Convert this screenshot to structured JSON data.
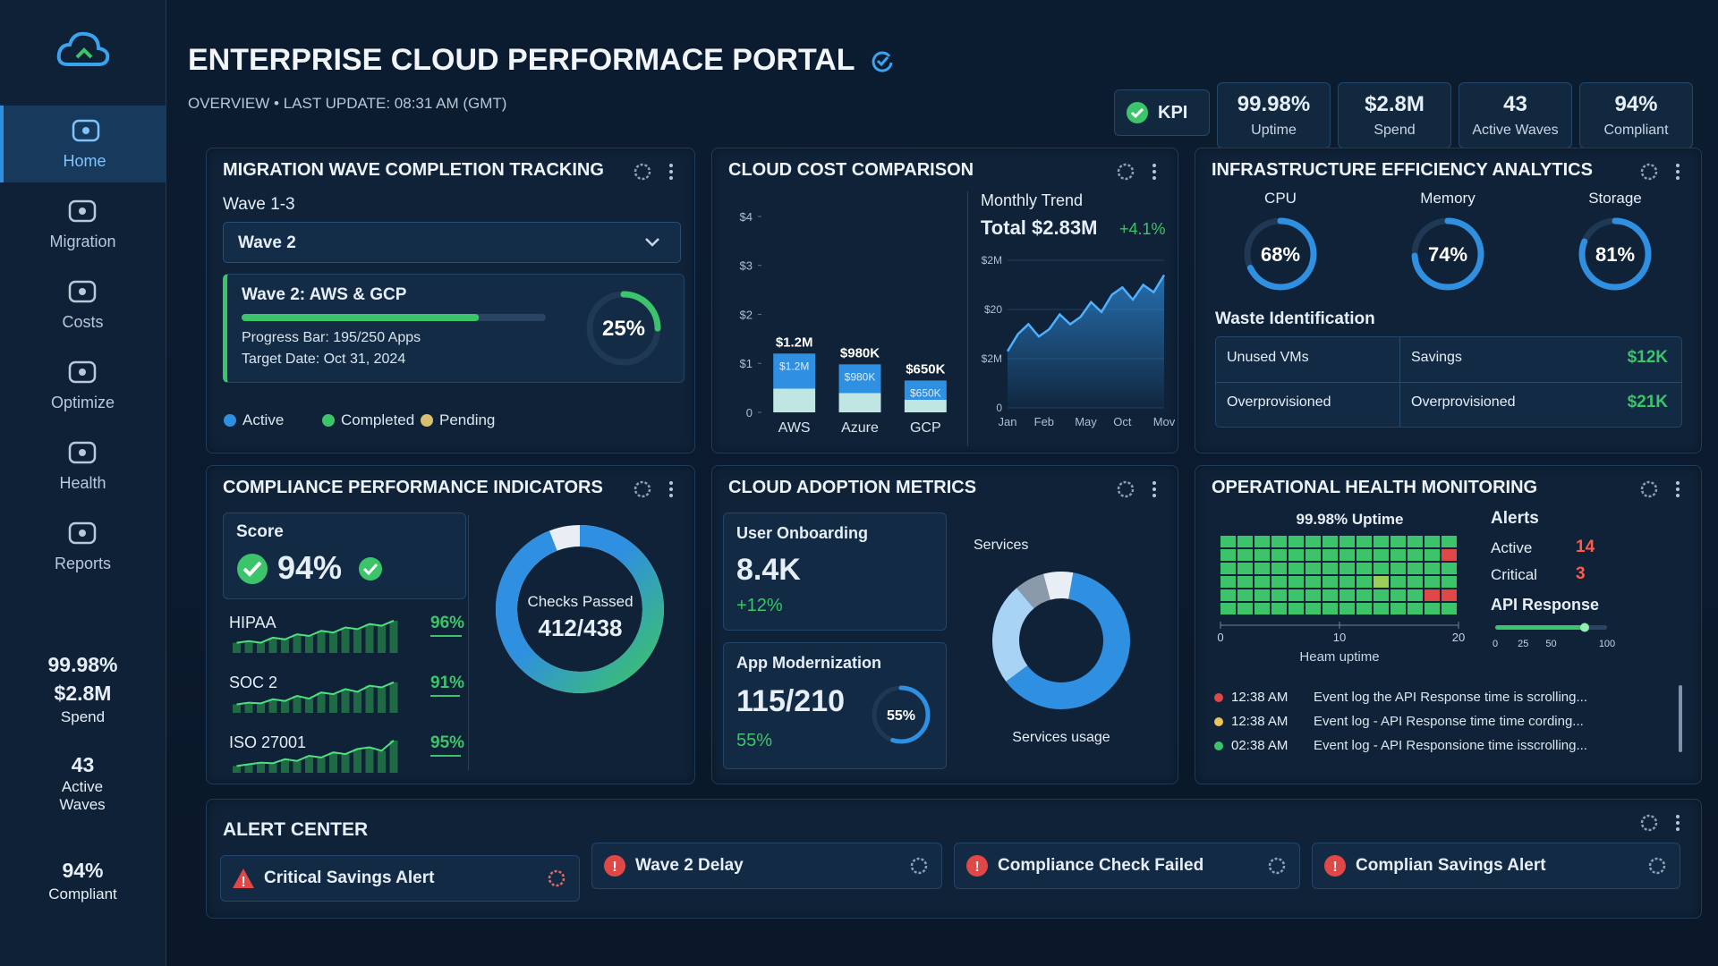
{
  "sidebar": {
    "nav": [
      "Home",
      "Migration",
      "Costs",
      "Optimize",
      "Health",
      "Reports"
    ],
    "stats": [
      "99.98%",
      "$2.8M",
      "Spend",
      "43",
      "Active Waves",
      "94%",
      "Compliant"
    ]
  },
  "header": {
    "title": "ENTERPRISE CLOUD PERFORMACE PORTAL",
    "subtitle": "OVERVIEW • LAST UPDATE: 08:31 AM (GMT)",
    "kpi_badge": "KPI",
    "kpis": [
      {
        "value": "99.98%",
        "label": "Uptime"
      },
      {
        "value": "$2.8M",
        "label": "Spend"
      },
      {
        "value": "43",
        "label": "Active Waves"
      },
      {
        "value": "94%",
        "label": "Compliant"
      }
    ]
  },
  "migration": {
    "title": "MIGRATION WAVE COMPLETION TRACKING",
    "range": "Wave 1-3",
    "selected": "Wave 2",
    "card_title": "Wave 2: AWS & GCP",
    "progress": {
      "label": "Progress Bar: 195/250 Apps",
      "value": 195,
      "max": 250
    },
    "target": "Target Date: Oct 31, 2024",
    "completion": {
      "value": 25,
      "label": "25%"
    },
    "legend": [
      {
        "name": "Active",
        "color": "#2f8fe0"
      },
      {
        "name": "Completed",
        "color": "#3cc46a"
      },
      {
        "name": "Pending",
        "color": "#d9c070"
      }
    ]
  },
  "cost": {
    "title": "CLOUD COST COMPARISON",
    "bars": {
      "type": "bar",
      "categories": [
        "AWS",
        "Azure",
        "GCP"
      ],
      "values": [
        1.2,
        0.98,
        0.65
      ],
      "value_labels": [
        "$1.2M",
        "$980K",
        "$650K"
      ],
      "ylim": [
        0,
        4.2
      ],
      "yticks": [
        0,
        {
          "value": 1,
          "label": "$1"
        },
        {
          "value": 2,
          "label": "$2"
        },
        {
          "value": 3,
          "label": "$3"
        },
        {
          "value": 4,
          "label": "$4"
        }
      ],
      "color": "#2f8fe0"
    },
    "trend": {
      "type": "area",
      "title": "Monthly Trend",
      "total": "Total $2.83M",
      "change": "+4.1%",
      "x": [
        0,
        1,
        2,
        3,
        4,
        5,
        6,
        7,
        8,
        9,
        10,
        11,
        12,
        13,
        14,
        15
      ],
      "values": [
        1.15,
        1.5,
        1.7,
        1.45,
        1.6,
        1.9,
        1.7,
        1.85,
        2.15,
        1.95,
        2.3,
        2.45,
        2.2,
        2.5,
        2.35,
        2.7
      ],
      "xlim": [
        0,
        15
      ],
      "xticks": [
        {
          "value": 0,
          "label": "Jan"
        },
        {
          "value": 3.5,
          "label": "Feb"
        },
        {
          "value": 7.5,
          "label": "May"
        },
        {
          "value": 11,
          "label": "Oct"
        },
        {
          "value": 15,
          "label": "Mov"
        }
      ],
      "ylim": [
        0,
        3
      ],
      "yticks": [
        0,
        {
          "value": 1,
          "label": "$2M"
        },
        {
          "value": 2,
          "label": "$20"
        },
        {
          "value": 3,
          "label": "$2M"
        }
      ],
      "grid": true,
      "color": "#2f8fe0"
    }
  },
  "infra": {
    "title": "INFRASTRUCTURE EFFICIENCY ANALYTICS",
    "gauges": [
      {
        "name": "CPU",
        "value": 68,
        "label": "68%"
      },
      {
        "name": "Memory",
        "value": 74,
        "label": "74%"
      },
      {
        "name": "Storage",
        "value": 81,
        "label": "81%"
      }
    ],
    "waste_title": "Waste Identification",
    "waste_rows": [
      [
        "Unused VMs",
        "Savings",
        "$12K"
      ],
      [
        "Overprovisioned",
        "Overprovisioned",
        "$21K"
      ]
    ]
  },
  "compliance": {
    "title": "COMPLIANCE PERFORMANCE INDICATORS",
    "score_label": "Score",
    "score": "94%",
    "standards": [
      {
        "name": "HIPAA",
        "value": 96,
        "label": "96%",
        "trend": [
          0.3,
          0.35,
          0.3,
          0.45,
          0.4,
          0.55,
          0.5,
          0.65,
          0.6,
          0.75,
          0.7,
          0.85,
          0.8,
          0.95
        ]
      },
      {
        "name": "SOC 2",
        "value": 91,
        "label": "91%",
        "trend": [
          0.25,
          0.3,
          0.28,
          0.4,
          0.35,
          0.5,
          0.42,
          0.6,
          0.55,
          0.7,
          0.62,
          0.8,
          0.75,
          0.9
        ]
      },
      {
        "name": "ISO 27001",
        "value": 95,
        "label": "95%",
        "trend": [
          0.2,
          0.25,
          0.3,
          0.28,
          0.4,
          0.35,
          0.5,
          0.45,
          0.6,
          0.55,
          0.7,
          0.75,
          0.65,
          0.95
        ]
      }
    ],
    "checks": {
      "label": "Checks Passed",
      "text": "412/438",
      "passed": 412,
      "total": 438
    }
  },
  "adoption": {
    "title": "CLOUD ADOPTION METRICS",
    "onboarding": {
      "label": "User Onboarding",
      "value": "8.4K",
      "change": "+12%"
    },
    "modernization": {
      "label": "App Modernization",
      "value": "115/210",
      "percent": {
        "value": 55,
        "label": "55%"
      }
    },
    "services": {
      "title": "Services",
      "caption": "Services usage",
      "segments": [
        {
          "value": 62,
          "color": "#2f8fe0"
        },
        {
          "value": 24,
          "color": "#a9d3f5"
        },
        {
          "value": 7,
          "color": "#8a9aab"
        },
        {
          "value": 7,
          "color": "#e8eef4"
        }
      ]
    }
  },
  "ops": {
    "title": "OPERATIONAL HEALTH MONITORING",
    "uptime": "99.98% Uptime",
    "heatmap": {
      "rows": [
        [
          0,
          0,
          0,
          0,
          0,
          0,
          0,
          0,
          0,
          0,
          0,
          0,
          0,
          0
        ],
        [
          0,
          0,
          0,
          0,
          0,
          0,
          0,
          0,
          0,
          0,
          0,
          0,
          0,
          1
        ],
        [
          0,
          0,
          0,
          0,
          0,
          0,
          0,
          0,
          0,
          0,
          0,
          0,
          0,
          0
        ],
        [
          0,
          0,
          0,
          0,
          0,
          0,
          0,
          0,
          0,
          2,
          0,
          0,
          0,
          0
        ],
        [
          0,
          0,
          0,
          0,
          0,
          0,
          0,
          0,
          0,
          0,
          0,
          0,
          1,
          1
        ],
        [
          0,
          0,
          0,
          0,
          0,
          0,
          0,
          0,
          0,
          0,
          0,
          0,
          0,
          0
        ]
      ],
      "colors": [
        "#3cc46a",
        "#e04848",
        "#9ccf5a"
      ],
      "xlim": [
        0,
        20
      ],
      "xticks": [
        0,
        10,
        20
      ],
      "caption": "Heam uptime"
    },
    "alerts_title": "Alerts",
    "alerts": [
      {
        "name": "Active",
        "value": 14
      },
      {
        "name": "Critical",
        "value": 3
      }
    ],
    "api": {
      "title": "API Response",
      "value": 80,
      "xlim": [
        0,
        100
      ],
      "xticks": [
        0,
        25,
        50,
        100
      ]
    },
    "events": [
      {
        "time": "12:38 AM",
        "text": "Event log the API Response time is scrolling...",
        "color": "#e04848"
      },
      {
        "time": "12:38 AM",
        "text": "Event log - API Response time time cording...",
        "color": "#e8c45a"
      },
      {
        "time": "02:38 AM",
        "text": "Event log - API Responsione time isscrolling...",
        "color": "#3cc46a"
      }
    ]
  },
  "alert_center": {
    "title": "ALERT CENTER",
    "alerts": [
      "Critical Savings Alert",
      "Wave 2 Delay",
      "Compliance Check Failed",
      "Complian Savings Alert"
    ]
  }
}
